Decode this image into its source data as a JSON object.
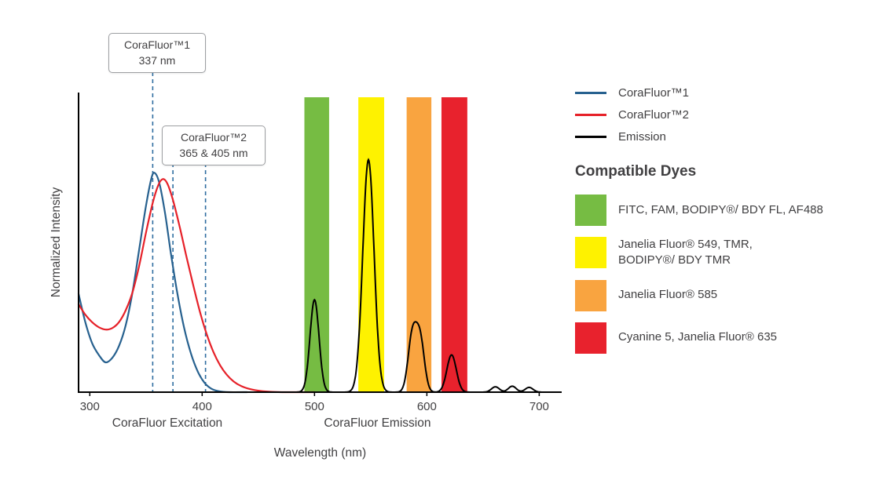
{
  "annotations": [
    {
      "line1": "CoraFluor™1",
      "line2": "337 nm"
    },
    {
      "line1": "CoraFluor™2",
      "line2": "365 & 405 nm"
    }
  ],
  "legend": {
    "lines": [
      {
        "label": "CoraFluor™1",
        "color": "#27618f"
      },
      {
        "label": "CoraFluor™2",
        "color": "#e62129"
      },
      {
        "label": "Emission",
        "color": "#000000"
      }
    ],
    "dyes_title": "Compatible Dyes",
    "dyes": [
      {
        "label": "FITC, FAM, BODIPY®/ BDY FL, AF488",
        "color": "#76bc43"
      },
      {
        "label": "Janelia Fluor® 549, TMR,\nBODIPY®/ BDY TMR",
        "color": "#fef200"
      },
      {
        "label": "Janelia Fluor® 585",
        "color": "#f9a440"
      },
      {
        "label": "Cyanine 5, Janelia Fluor® 635",
        "color": "#e8222d"
      }
    ]
  },
  "chart_data": {
    "type": "line",
    "title": "",
    "xlabel": "Wavelength (nm)",
    "ylabel": "Normalized Intensity",
    "x_range": [
      290,
      720
    ],
    "y_range": [
      0,
      1
    ],
    "x_ticks": [
      300,
      400,
      500,
      600,
      700
    ],
    "grid": false,
    "legend_position": "right",
    "section_labels": [
      {
        "text": "CoraFluor Excitation",
        "center_nm": 369
      },
      {
        "text": "CoraFluor Emission",
        "center_nm": 556
      }
    ],
    "dashed_markers_nm": [
      356,
      374,
      403
    ],
    "dashed_color": "#2e6da0",
    "bands": [
      {
        "name": "FITC-FAM-BODIPY-FL-AF488-window",
        "nm": [
          491,
          513
        ],
        "color": "#76bc43"
      },
      {
        "name": "JF549-TMR-BODIPY-TMR-window",
        "nm": [
          539,
          562
        ],
        "color": "#fef200"
      },
      {
        "name": "JF585-window",
        "nm": [
          582,
          604
        ],
        "color": "#f9a440"
      },
      {
        "name": "Cy5-JF635-window",
        "nm": [
          613,
          636
        ],
        "color": "#e8222d"
      }
    ],
    "series": [
      {
        "name": "CoraFluor™1",
        "role": "excitation",
        "color": "#27618f",
        "points": [
          [
            290,
            0.33
          ],
          [
            296,
            0.235
          ],
          [
            302,
            0.165
          ],
          [
            308,
            0.125
          ],
          [
            314,
            0.1
          ],
          [
            320,
            0.115
          ],
          [
            326,
            0.155
          ],
          [
            332,
            0.225
          ],
          [
            338,
            0.335
          ],
          [
            344,
            0.48
          ],
          [
            350,
            0.625
          ],
          [
            355,
            0.72
          ],
          [
            358,
            0.735
          ],
          [
            362,
            0.7
          ],
          [
            367,
            0.6
          ],
          [
            372,
            0.47
          ],
          [
            378,
            0.33
          ],
          [
            384,
            0.215
          ],
          [
            390,
            0.13
          ],
          [
            396,
            0.07
          ],
          [
            402,
            0.032
          ],
          [
            408,
            0.012
          ],
          [
            415,
            0.003
          ],
          [
            424,
            0
          ],
          [
            440,
            0
          ]
        ]
      },
      {
        "name": "CoraFluor™2",
        "role": "excitation",
        "color": "#e62129",
        "points": [
          [
            290,
            0.295
          ],
          [
            296,
            0.26
          ],
          [
            302,
            0.235
          ],
          [
            308,
            0.218
          ],
          [
            314,
            0.21
          ],
          [
            320,
            0.215
          ],
          [
            326,
            0.235
          ],
          [
            332,
            0.275
          ],
          [
            338,
            0.335
          ],
          [
            344,
            0.425
          ],
          [
            350,
            0.535
          ],
          [
            356,
            0.635
          ],
          [
            361,
            0.695
          ],
          [
            365,
            0.715
          ],
          [
            369,
            0.7
          ],
          [
            374,
            0.645
          ],
          [
            380,
            0.555
          ],
          [
            386,
            0.455
          ],
          [
            392,
            0.36
          ],
          [
            398,
            0.27
          ],
          [
            404,
            0.195
          ],
          [
            410,
            0.135
          ],
          [
            416,
            0.09
          ],
          [
            422,
            0.058
          ],
          [
            428,
            0.036
          ],
          [
            435,
            0.02
          ],
          [
            443,
            0.01
          ],
          [
            452,
            0.004
          ],
          [
            462,
            0.001
          ],
          [
            475,
            0
          ],
          [
            500,
            0
          ]
        ]
      },
      {
        "name": "Emission",
        "role": "emission",
        "color": "#000000",
        "peaks": [
          {
            "center": 500,
            "sigma": 4.0,
            "amp": 0.31
          },
          {
            "center": 548,
            "sigma": 5.0,
            "amp": 0.78
          },
          {
            "center": 587,
            "sigma": 3.8,
            "amp": 0.185
          },
          {
            "center": 594,
            "sigma": 3.8,
            "amp": 0.175
          },
          {
            "center": 622,
            "sigma": 4.2,
            "amp": 0.125
          },
          {
            "center": 661,
            "sigma": 3.5,
            "amp": 0.018
          },
          {
            "center": 676,
            "sigma": 3.5,
            "amp": 0.02
          },
          {
            "center": 691,
            "sigma": 3.5,
            "amp": 0.016
          }
        ]
      }
    ]
  }
}
